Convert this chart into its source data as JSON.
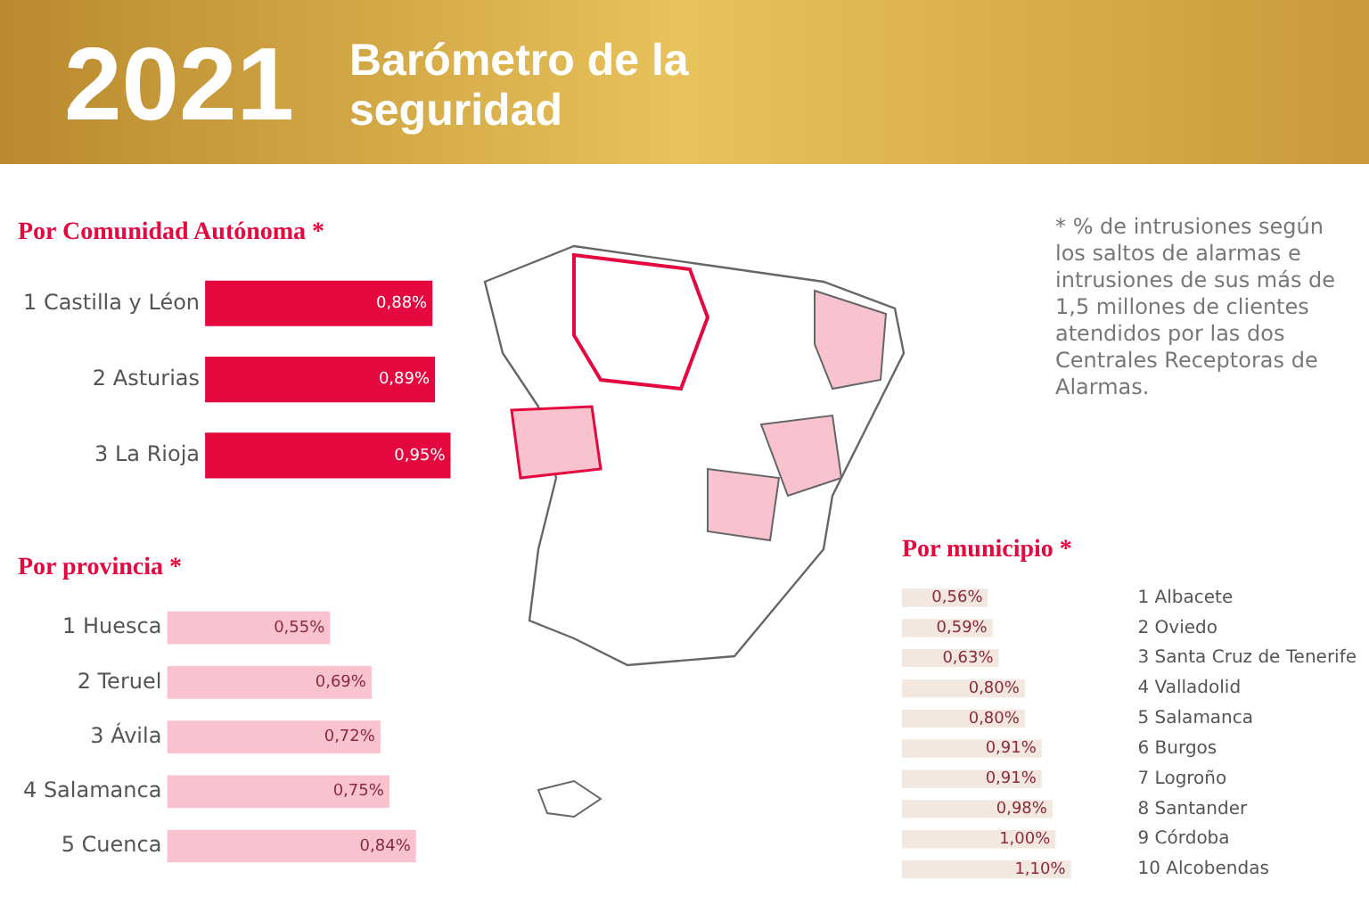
{
  "chart_data": [
    {
      "type": "other",
      "title": "2021",
      "subtitle": "Barómetro de la seguridad",
      "annotations": [
        "* % de intrusiones según los saltos de alarmas e intrusiones de sus más de 1,5 millones de clientes atendidos por las dos Centrales Receptoras de Alarmas."
      ]
    },
    {
      "type": "bar",
      "orientation": "horizontal",
      "title": "Por Comunidad Autónoma *",
      "categories": [
        "1 Castilla y Léon",
        "2 Asturias",
        "3 La Rioja"
      ],
      "values": [
        0.88,
        0.89,
        0.95
      ],
      "value_labels": [
        "0,88%",
        "0,89%",
        "0,95%"
      ],
      "color": "#e4083f",
      "tick_labels": "y",
      "grid": false,
      "legend": false
    },
    {
      "type": "bar",
      "orientation": "horizontal",
      "title": "Por provincia *",
      "categories": [
        "1 Huesca",
        "2 Teruel",
        "3 Ávila",
        "4 Salamanca",
        "5 Cuenca"
      ],
      "values": [
        0.55,
        0.69,
        0.72,
        0.75,
        0.84
      ],
      "value_labels": [
        "0,55%",
        "0,69%",
        "0,72%",
        "0,75%",
        "0,84%"
      ],
      "color": "#f8c3ce",
      "tick_labels": "y",
      "grid": false,
      "legend": false
    },
    {
      "type": "bar",
      "orientation": "horizontal",
      "title": "Por municipio *",
      "categories": [
        "1 Albacete",
        "2 Oviedo",
        "3 Santa Cruz de Tenerife",
        "4 Valladolid",
        "5 Salamanca",
        "6 Burgos",
        "7 Logroño",
        "8 Santander",
        "9 Córdoba",
        "10 Alcobendas"
      ],
      "values": [
        0.56,
        0.59,
        0.63,
        0.8,
        0.8,
        0.91,
        0.91,
        0.98,
        1.0,
        1.1
      ],
      "value_labels": [
        "0,56%",
        "0,59%",
        "0,63%",
        "0,80%",
        "0,80%",
        "0,91%",
        "0,91%",
        "0,98%",
        "1,00%",
        "1,10%"
      ],
      "color": "#f2e8df",
      "tick_labels": "y",
      "grid": false,
      "legend": false
    }
  ]
}
